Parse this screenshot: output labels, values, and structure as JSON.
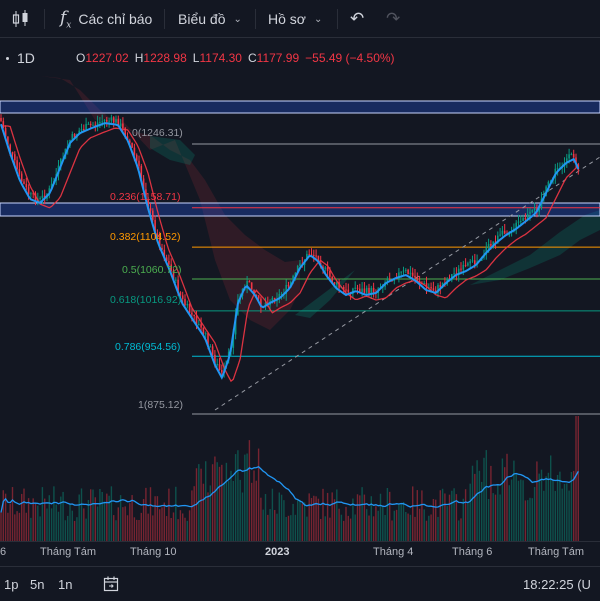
{
  "toolbar": {
    "candle_icon": "candlestick-icon",
    "indicators_icon": "function-icon",
    "indicators_glyph": "f",
    "indicators_sub": "x",
    "indicators_label": "Các chỉ báo",
    "layout_label": "Biểu đồ",
    "layout_chevron": "⌄",
    "profile_label": "Hồ sơ",
    "profile_chevron": "⌄",
    "undo_glyph": "↶",
    "redo_glyph": "↷"
  },
  "legend": {
    "interval": "1D",
    "o_label": "O",
    "o_value": "1227.02",
    "h_label": "H",
    "h_value": "1228.98",
    "l_label": "L",
    "l_value": "1174.30",
    "c_label": "C",
    "c_value": "1177.99",
    "change": "−55.49 (−4.50%)"
  },
  "fib_levels": [
    {
      "ratio": "0",
      "price": "1246.31",
      "text": "0(1246.31)",
      "color": "#9598a1"
    },
    {
      "ratio": "0.236",
      "price": "1158.71",
      "text": "0.236(1158.71)",
      "color": "#f23645"
    },
    {
      "ratio": "0.382",
      "price": "1104.52",
      "text": "0.382(1104.52)",
      "color": "#ff9800"
    },
    {
      "ratio": "0.5",
      "price": "1060.72",
      "text": "0.5(1060.72)",
      "color": "#4caf50"
    },
    {
      "ratio": "0.618",
      "price": "1016.92",
      "text": "0.618(1016.92)",
      "color": "#089981"
    },
    {
      "ratio": "0.786",
      "price": "954.56",
      "text": "0.786(954.56)",
      "color": "#00bcd4"
    },
    {
      "ratio": "1",
      "price": "875.12",
      "text": "1(875.12)",
      "color": "#9598a1"
    }
  ],
  "xaxis": {
    "labels": [
      "6",
      "Tháng Tám",
      "Tháng 10",
      "2023",
      "Tháng 4",
      "Tháng 6",
      "Tháng Tám"
    ]
  },
  "bottombar": {
    "range_1d": "1p",
    "range_5d": "5n",
    "range_1y": "1n",
    "goto_icon": "calendar-goto-icon",
    "time": "18:22:25 (U"
  },
  "colors": {
    "background": "#131722",
    "up": "#089981",
    "down": "#f23645",
    "ma_fast": "#2196f3",
    "ma_slow": "#f23645"
  }
}
